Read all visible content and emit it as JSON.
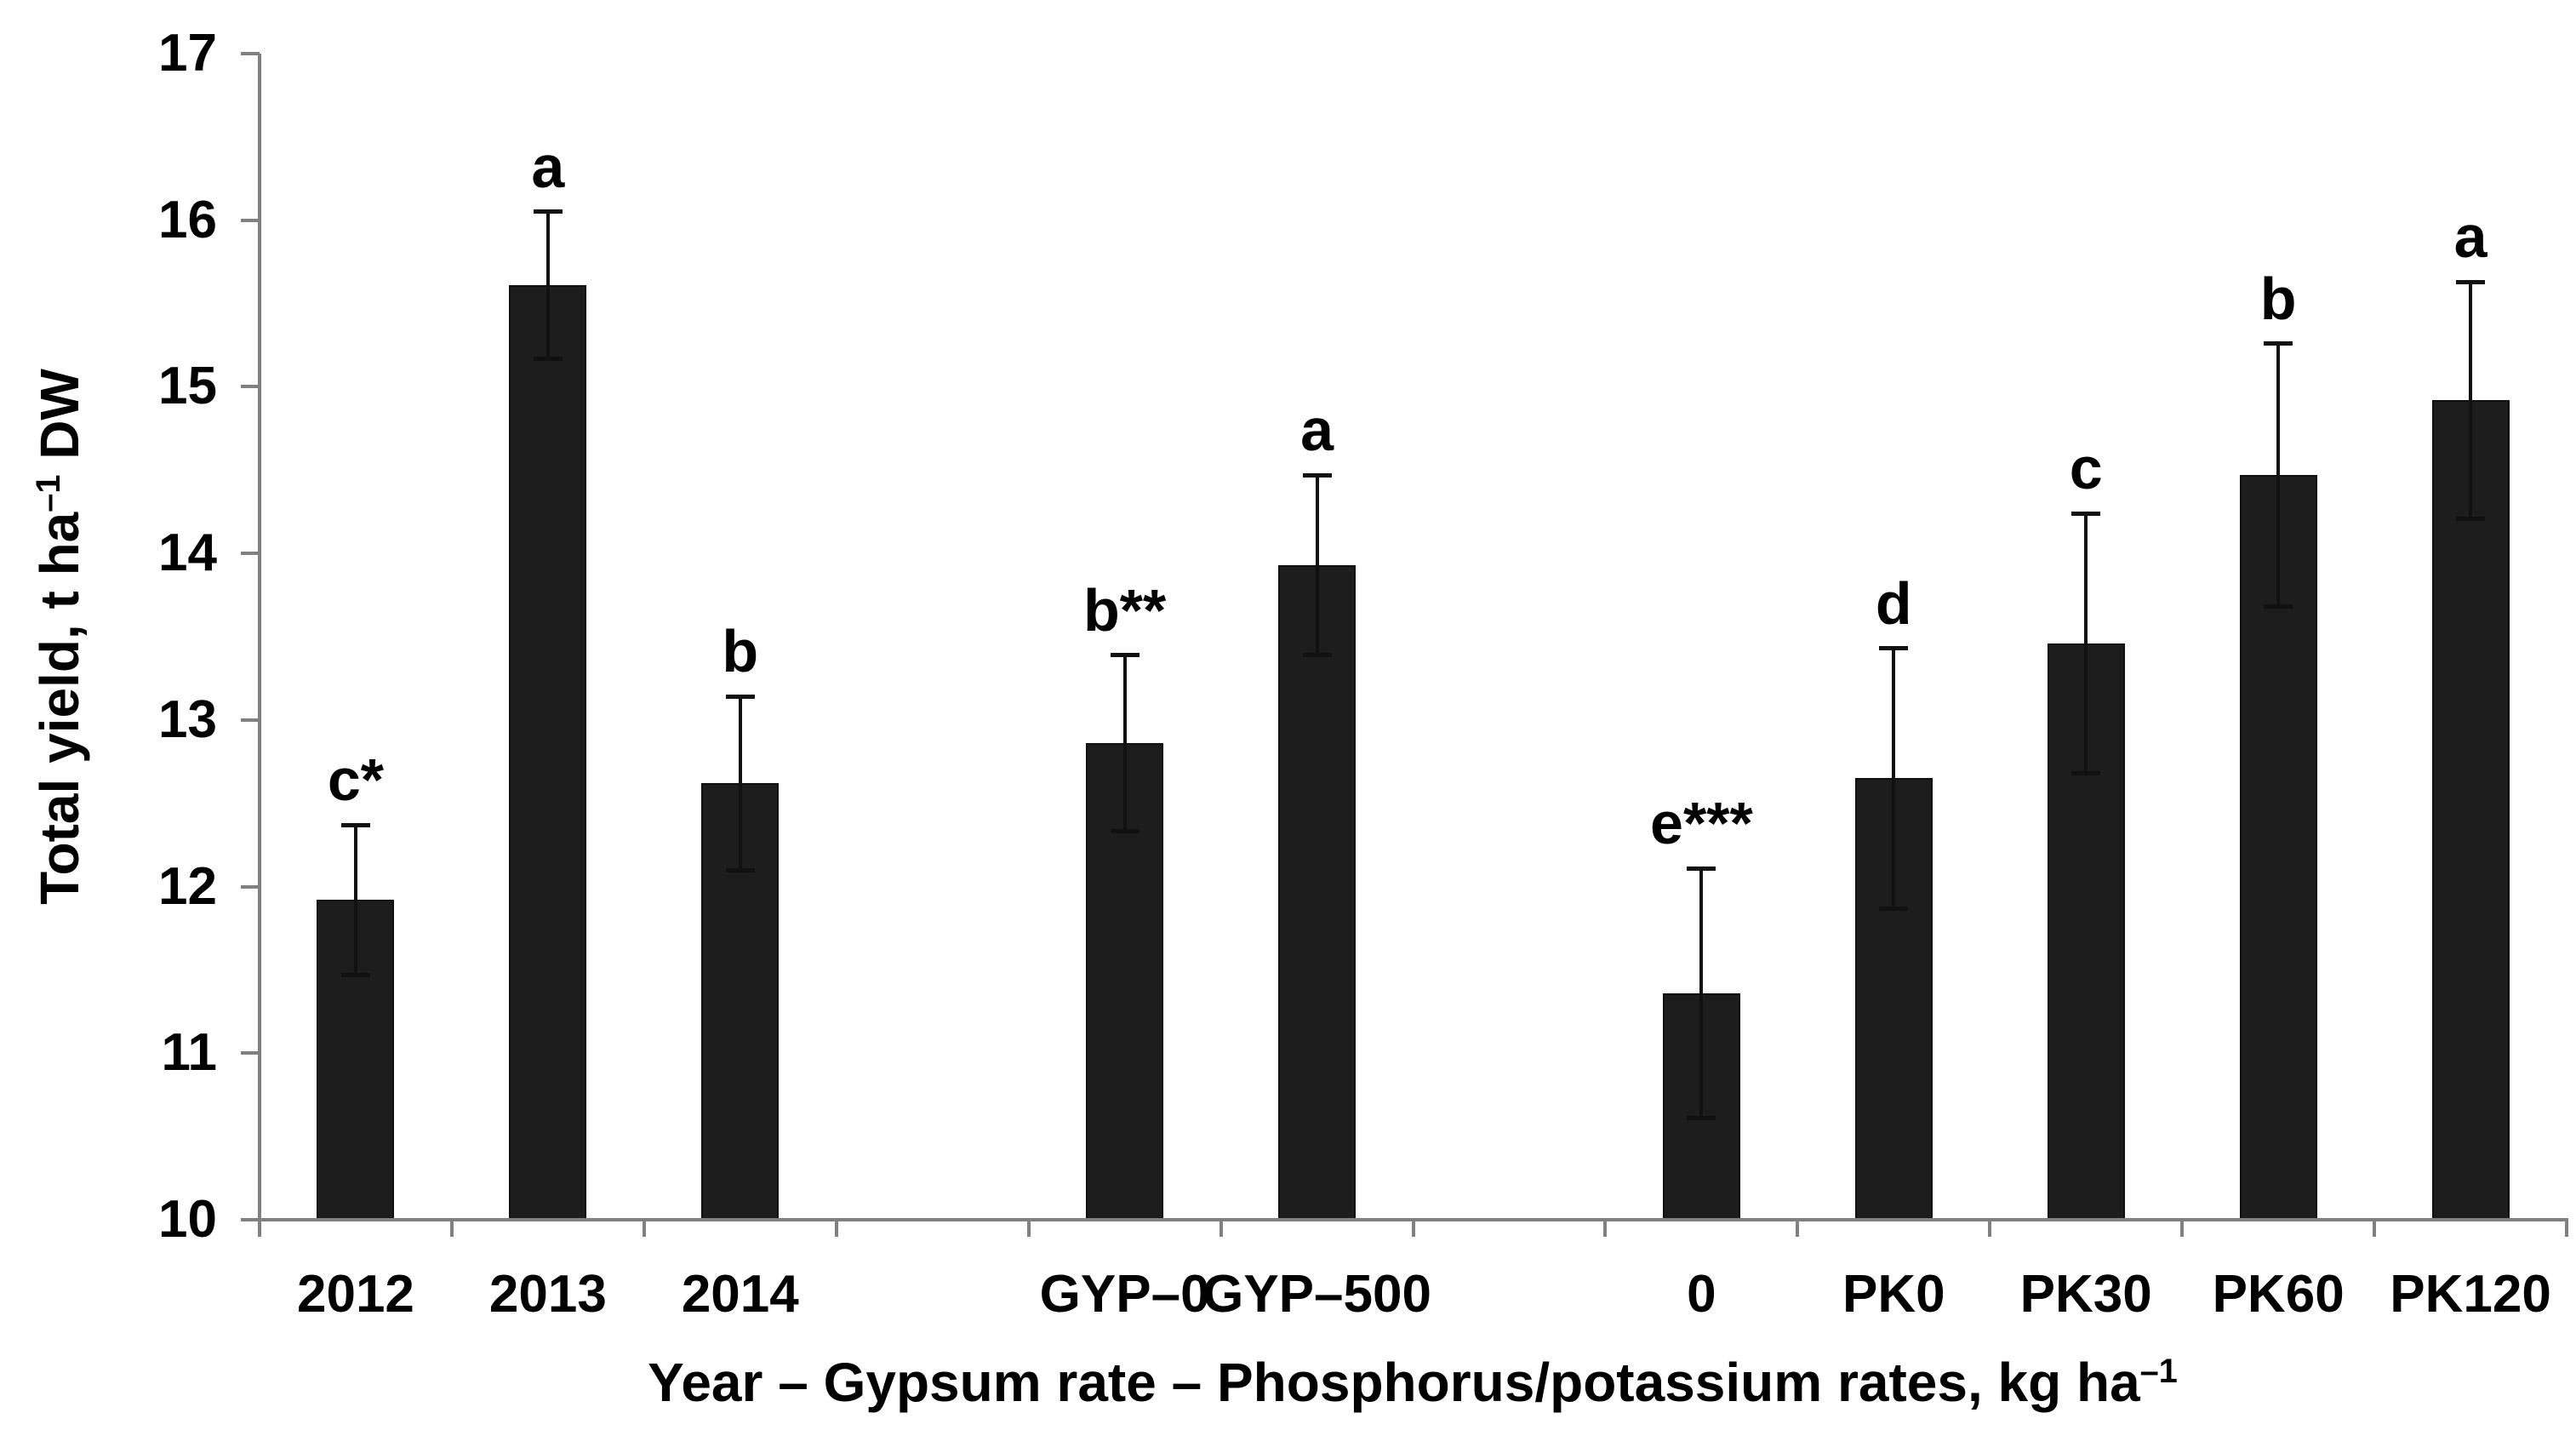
{
  "chart_data": {
    "type": "bar",
    "title": "",
    "ylabel": {
      "text": "Total yield, t ha",
      "sup": "–1",
      "suffix": " DW"
    },
    "xlabel": {
      "text": "Year – Gypsum rate – Phosphorus/potassium rates, kg ha",
      "sup": "–1"
    },
    "ylim": [
      10,
      17
    ],
    "yticks": [
      10,
      11,
      12,
      13,
      14,
      15,
      16,
      17
    ],
    "num_slots": 12,
    "grid": false,
    "legend": "none",
    "bar_color": "#1d1d1d",
    "axis_color": "#808080",
    "error_bar_color": "#111111",
    "text_color": "#000000",
    "bars": [
      {
        "label": "2012",
        "slot": 0,
        "value": 11.92,
        "error": 0.45,
        "letter": "c*"
      },
      {
        "label": "2013",
        "slot": 1,
        "value": 15.61,
        "error": 0.44,
        "letter": "a"
      },
      {
        "label": "2014",
        "slot": 2,
        "value": 12.62,
        "error": 0.52,
        "letter": "b"
      },
      {
        "label": "GYP–0",
        "slot": 4,
        "value": 12.86,
        "error": 0.53,
        "letter": "b**"
      },
      {
        "label": "GYP–500",
        "slot": 5,
        "value": 13.93,
        "error": 0.54,
        "letter": "a"
      },
      {
        "label": "0",
        "slot": 7,
        "value": 11.36,
        "error": 0.75,
        "letter": "e***"
      },
      {
        "label": "PK0",
        "slot": 8,
        "value": 12.65,
        "error": 0.78,
        "letter": "d"
      },
      {
        "label": "PK30",
        "slot": 9,
        "value": 13.46,
        "error": 0.78,
        "letter": "c"
      },
      {
        "label": "PK60",
        "slot": 10,
        "value": 14.47,
        "error": 0.79,
        "letter": "b"
      },
      {
        "label": "PK120",
        "slot": 11,
        "value": 14.92,
        "error": 0.71,
        "letter": "a"
      }
    ]
  }
}
